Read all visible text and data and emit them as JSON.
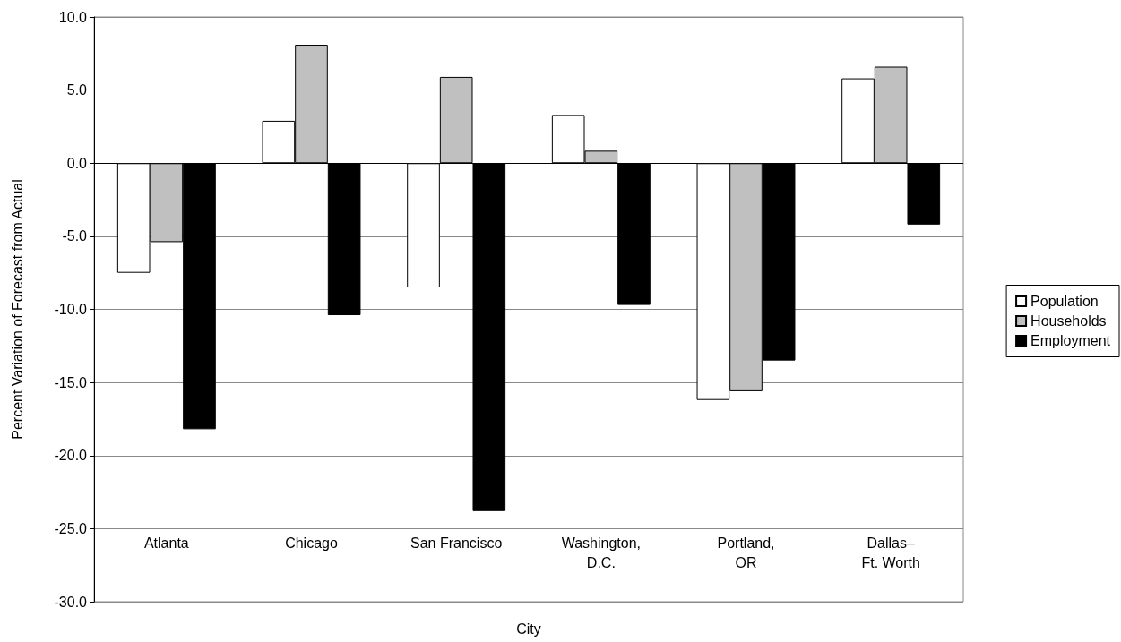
{
  "chart_data": {
    "type": "bar",
    "xlabel": "City",
    "ylabel": "Percent Variation of Forecast from Actual",
    "categories": [
      "Atlanta",
      "Chicago",
      "San Francisco",
      "Washington,\nD.C.",
      "Portland,\nOR",
      "Dallas–\nFt. Worth"
    ],
    "series": [
      {
        "name": "Population",
        "color": "#ffffff",
        "values": [
          -7.5,
          2.9,
          -8.5,
          3.3,
          -16.2,
          5.8
        ]
      },
      {
        "name": "Households",
        "color": "#c0c0c0",
        "values": [
          -5.4,
          8.1,
          5.9,
          0.85,
          -15.6,
          6.6
        ]
      },
      {
        "name": "Employment",
        "color": "#000000",
        "values": [
          -18.2,
          -10.4,
          -23.8,
          -9.7,
          -13.5,
          -4.2
        ]
      }
    ],
    "ylim": [
      -30,
      10
    ],
    "yticks": [
      {
        "value": -30,
        "label": "-30.0"
      },
      {
        "value": -25,
        "label": "-25.0"
      },
      {
        "value": -20,
        "label": "-20.0"
      },
      {
        "value": -15,
        "label": "-15.0"
      },
      {
        "value": -10,
        "label": "-10.0"
      },
      {
        "value": -5,
        "label": "-5.0"
      },
      {
        "value": 0,
        "label": "0.0"
      },
      {
        "value": 5,
        "label": "5.0"
      },
      {
        "value": 10,
        "label": "10.0"
      }
    ],
    "grid": "y",
    "legend": "right"
  }
}
